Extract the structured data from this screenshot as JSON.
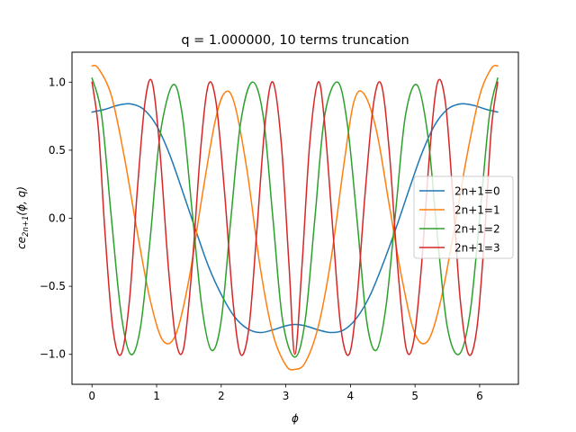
{
  "chart_data": {
    "type": "line",
    "title": "q = 1.000000, 10 terms truncation",
    "xlabel": "ϕ",
    "ylabel": "ce_{2n+1}(ϕ, q)",
    "ylabel_parts": {
      "base": "ce",
      "sub": "2n+1",
      "args": "(ϕ, q)"
    },
    "xlim": [
      -0.31,
      6.6
    ],
    "ylim": [
      -1.22,
      1.22
    ],
    "xticks": [
      0,
      1,
      2,
      3,
      4,
      5,
      6
    ],
    "xtick_labels": [
      "0",
      "1",
      "2",
      "3",
      "4",
      "5",
      "6"
    ],
    "yticks": [
      -1.0,
      -0.5,
      0.0,
      0.5,
      1.0
    ],
    "ytick_labels": [
      "−1.0",
      "−0.5",
      "0.0",
      "0.5",
      "1.0"
    ],
    "grid": false,
    "legend_position": "center-right",
    "series": [
      {
        "name": "2n+1=0",
        "color": "#1f77b4",
        "x": [
          0.0,
          0.2,
          0.4,
          0.6,
          0.8,
          1.0,
          1.2,
          1.4,
          1.6,
          1.8,
          2.0,
          2.2,
          2.4,
          2.6,
          2.8,
          3.0,
          3.14,
          3.3,
          3.5,
          3.7,
          3.9,
          4.1,
          4.3,
          4.5,
          4.7,
          4.9,
          5.1,
          5.3,
          5.5,
          5.7,
          5.9,
          6.1,
          6.28
        ],
        "y": [
          0.78,
          0.8,
          0.83,
          0.84,
          0.8,
          0.68,
          0.47,
          0.2,
          -0.08,
          -0.35,
          -0.56,
          -0.72,
          -0.81,
          -0.84,
          -0.82,
          -0.79,
          -0.78,
          -0.79,
          -0.82,
          -0.84,
          -0.82,
          -0.73,
          -0.57,
          -0.34,
          -0.08,
          0.2,
          0.47,
          0.68,
          0.8,
          0.84,
          0.83,
          0.8,
          0.78
        ]
      },
      {
        "name": "2n+1=1",
        "color": "#ff7f0e",
        "x": [
          0.0,
          0.1,
          0.3,
          0.5,
          0.7,
          0.9,
          1.1,
          1.3,
          1.5,
          1.7,
          1.9,
          2.05,
          2.2,
          2.4,
          2.6,
          2.8,
          3.0,
          3.14,
          3.3,
          3.5,
          3.7,
          3.9,
          4.05,
          4.2,
          4.4,
          4.6,
          4.8,
          5.0,
          5.2,
          5.4,
          5.6,
          5.8,
          6.0,
          6.18,
          6.28
        ],
        "y": [
          1.12,
          1.1,
          0.9,
          0.45,
          -0.1,
          -0.6,
          -0.9,
          -0.85,
          -0.45,
          0.15,
          0.7,
          0.92,
          0.85,
          0.35,
          -0.35,
          -0.85,
          -1.08,
          -1.11,
          -1.06,
          -0.8,
          -0.3,
          0.4,
          0.85,
          0.92,
          0.65,
          0.1,
          -0.45,
          -0.85,
          -0.9,
          -0.6,
          -0.1,
          0.45,
          0.9,
          1.1,
          1.12
        ]
      },
      {
        "name": "2n+1=2",
        "color": "#2ca02c",
        "x": [
          0.0,
          0.15,
          0.3,
          0.45,
          0.6,
          0.75,
          0.9,
          1.05,
          1.25,
          1.4,
          1.55,
          1.7,
          1.85,
          2.0,
          2.15,
          2.3,
          2.48,
          2.65,
          2.8,
          2.95,
          3.14,
          3.3,
          3.45,
          3.6,
          3.8,
          3.95,
          4.1,
          4.25,
          4.4,
          4.55,
          4.7,
          4.85,
          5.03,
          5.2,
          5.35,
          5.5,
          5.68,
          5.85,
          6.0,
          6.15,
          6.28
        ],
        "y": [
          1.03,
          0.75,
          0.0,
          -0.7,
          -1.0,
          -0.8,
          -0.15,
          0.6,
          0.98,
          0.75,
          0.05,
          -0.65,
          -0.97,
          -0.75,
          0.0,
          0.7,
          1.0,
          0.75,
          0.0,
          -0.75,
          -1.02,
          -0.75,
          0.0,
          0.75,
          1.0,
          0.7,
          0.0,
          -0.75,
          -0.97,
          -0.65,
          0.05,
          0.75,
          0.98,
          0.6,
          -0.15,
          -0.8,
          -1.0,
          -0.7,
          0.0,
          0.75,
          1.03
        ]
      },
      {
        "name": "2n+1=3",
        "color": "#d62728",
        "x": [
          0.0,
          0.1,
          0.2,
          0.32,
          0.45,
          0.58,
          0.7,
          0.82,
          0.93,
          1.05,
          1.18,
          1.3,
          1.42,
          1.55,
          1.68,
          1.8,
          1.92,
          2.05,
          2.18,
          2.3,
          2.43,
          2.55,
          2.68,
          2.8,
          2.93,
          3.05,
          3.14,
          3.25,
          3.37,
          3.5,
          3.6,
          3.73,
          3.85,
          3.98,
          4.1,
          4.23,
          4.36,
          4.48,
          4.6,
          4.73,
          4.86,
          4.98,
          5.1,
          5.23,
          5.35,
          5.47,
          5.58,
          5.7,
          5.83,
          5.96,
          6.08,
          6.18,
          6.28
        ],
        "y": [
          1.0,
          0.65,
          -0.1,
          -0.8,
          -1.0,
          -0.6,
          0.2,
          0.85,
          1.0,
          0.5,
          -0.35,
          -0.9,
          -0.95,
          -0.35,
          0.5,
          0.98,
          0.85,
          0.2,
          -0.6,
          -1.0,
          -0.8,
          -0.1,
          0.7,
          1.0,
          0.55,
          -0.35,
          -1.0,
          -0.35,
          0.55,
          1.0,
          0.7,
          -0.1,
          -0.8,
          -1.0,
          -0.6,
          0.2,
          0.85,
          0.98,
          0.5,
          -0.35,
          -0.95,
          -0.9,
          -0.35,
          0.5,
          1.0,
          0.85,
          0.2,
          -0.6,
          -1.0,
          -0.8,
          -0.1,
          0.65,
          1.0
        ]
      }
    ]
  }
}
